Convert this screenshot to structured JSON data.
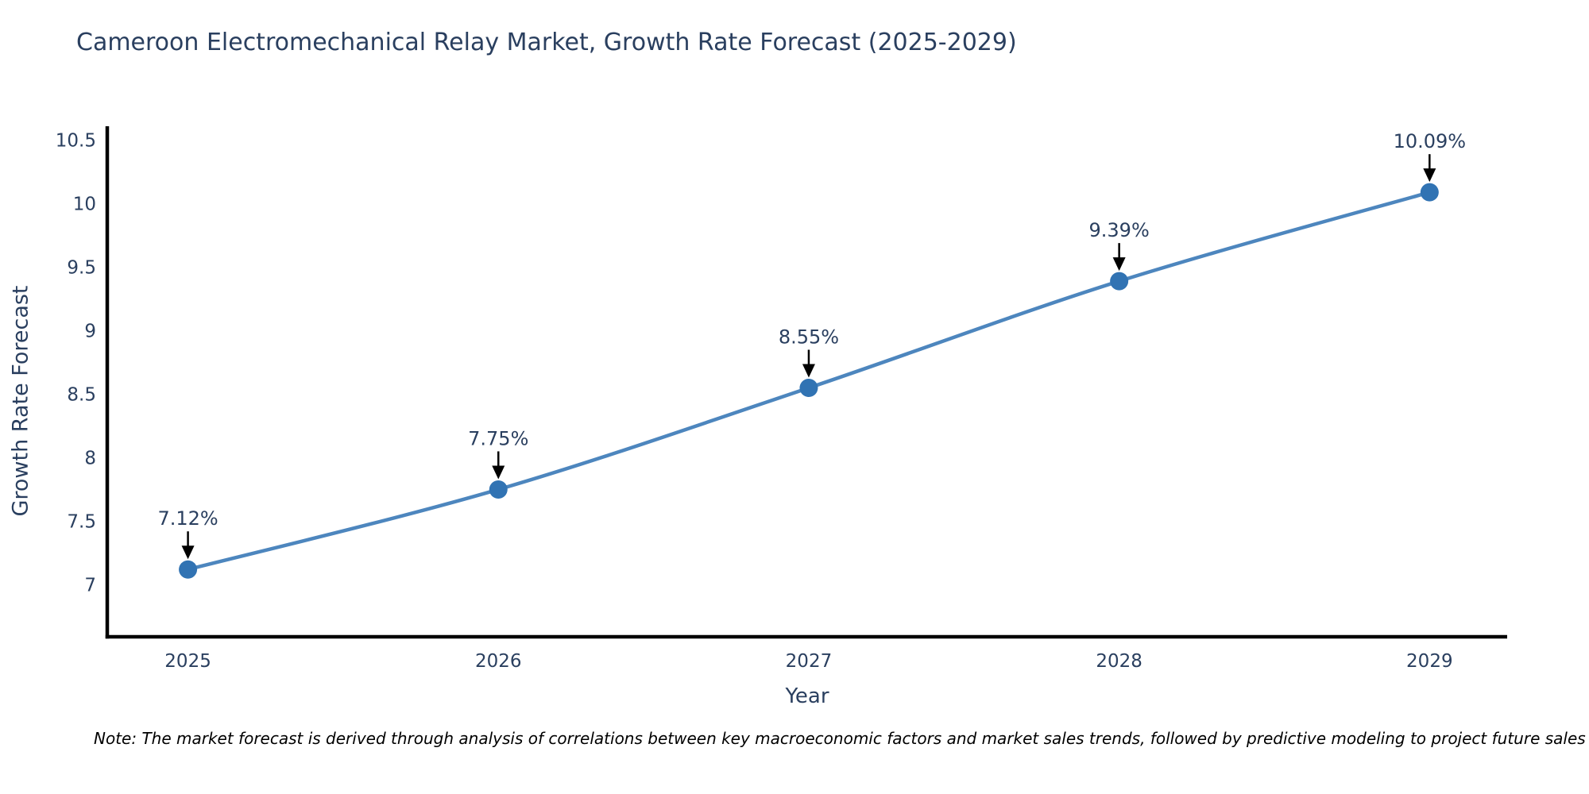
{
  "chart_data": {
    "type": "line",
    "title": "Cameroon Electromechanical Relay Market, Growth Rate Forecast (2025-2029)",
    "xlabel": "Year",
    "ylabel": "Growth Rate Forecast",
    "x": [
      2025,
      2026,
      2027,
      2028,
      2029
    ],
    "values": [
      7.12,
      7.75,
      8.55,
      9.39,
      10.09
    ],
    "point_labels": [
      "7.12%",
      "7.75%",
      "8.55%",
      "9.39%",
      "10.09%"
    ],
    "x_tick_labels": [
      "2025",
      "2026",
      "2027",
      "2028",
      "2029"
    ],
    "y_ticks": [
      7,
      7.5,
      8,
      8.5,
      9,
      9.5,
      10,
      10.5
    ],
    "y_tick_labels": [
      "7",
      "7.5",
      "8",
      "8.5",
      "9",
      "9.5",
      "10",
      "10.5"
    ],
    "xlim": [
      2024.74,
      2029.25
    ],
    "ylim": [
      6.59,
      10.61
    ],
    "grid": false,
    "legend_position": "none",
    "line_color": "#4d86be",
    "marker_color": "#3173b3",
    "axis_color": "#000000",
    "text_color": "#2a3f5f",
    "annotation_arrow_color": "#000000"
  },
  "note": "Note: The market forecast is derived through analysis of correlations between key macroeconomic factors and market sales trends, followed by predictive modeling to project future sales"
}
